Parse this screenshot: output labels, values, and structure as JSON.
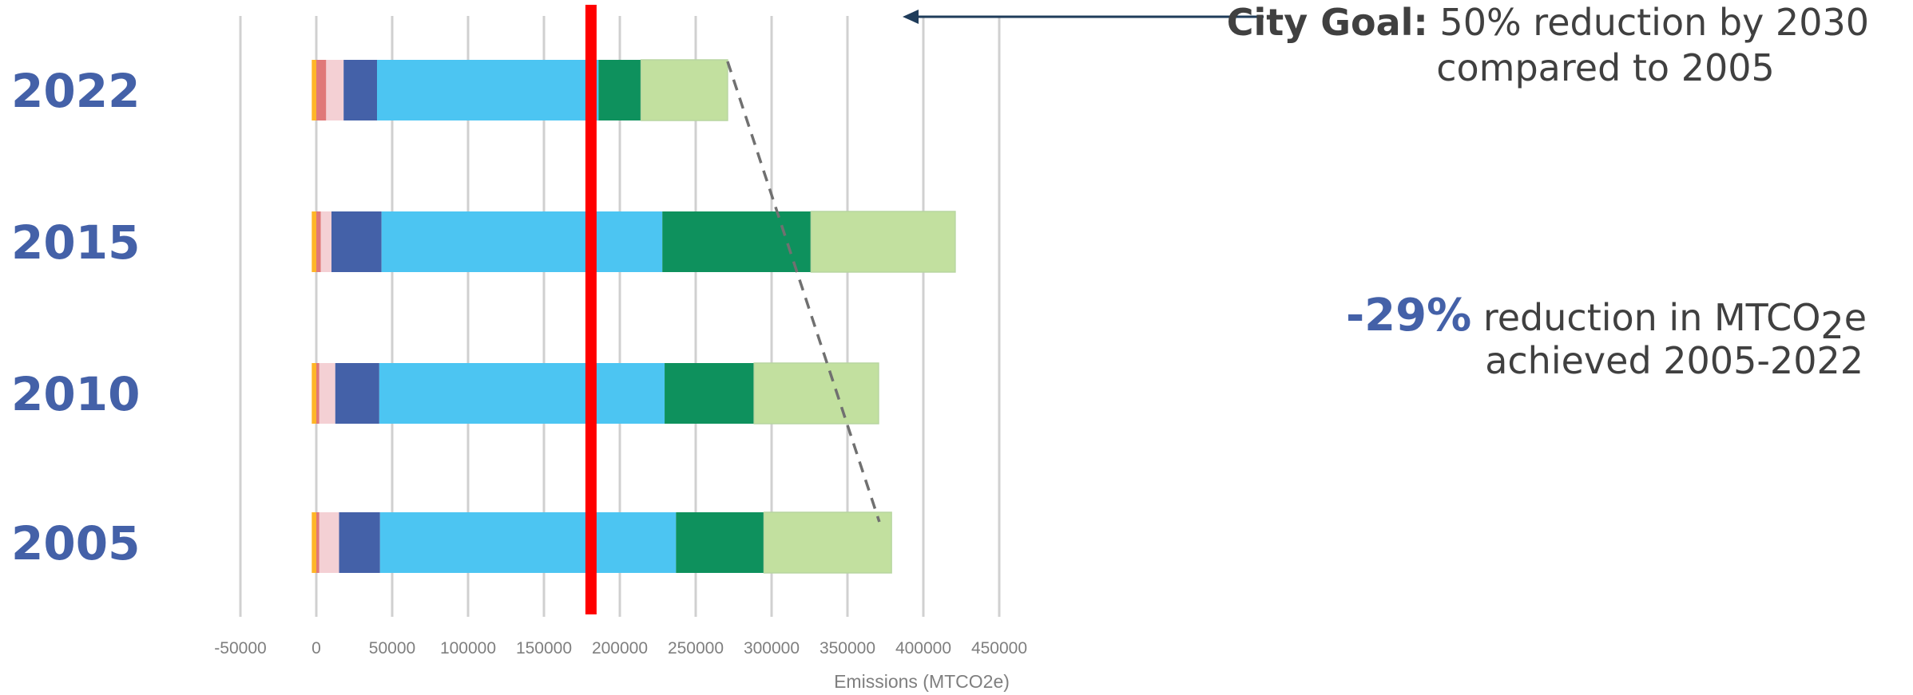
{
  "chart_data": {
    "type": "bar",
    "orientation": "horizontal",
    "stacked": true,
    "categories": [
      "2022",
      "2015",
      "2010",
      "2005"
    ],
    "series": [
      {
        "color": "#FFB628",
        "values": [
          -3000,
          -3000,
          -3000,
          -3000
        ]
      },
      {
        "color": "#E07878",
        "values": [
          6500,
          3000,
          2000,
          2000
        ]
      },
      {
        "color": "#F4D0D4",
        "values": [
          11500,
          7000,
          10500,
          13000
        ]
      },
      {
        "color": "#4461A8",
        "values": [
          22000,
          33000,
          29000,
          27000
        ]
      },
      {
        "color": "#4CC5F2",
        "values": [
          146000,
          185000,
          188000,
          195000
        ]
      },
      {
        "color": "#0E915D",
        "values": [
          28000,
          98000,
          59000,
          58000
        ]
      },
      {
        "color": "#C2E09F",
        "values": [
          57000,
          95000,
          82000,
          84000
        ]
      }
    ],
    "xlabel": "Emissions (MTCO2e)",
    "xlim": [
      -50000,
      500000
    ],
    "xticks": [
      "-50000",
      "0",
      "50000",
      "100000",
      "150000",
      "200000",
      "250000",
      "300000",
      "350000",
      "400000",
      "450000"
    ],
    "xtick_values": [
      -50000,
      0,
      50000,
      100000,
      150000,
      200000,
      250000,
      300000,
      350000,
      400000,
      450000
    ],
    "grid": true,
    "goal_line": {
      "value": 181000,
      "color": "#FF0000"
    },
    "trend_line": {
      "from_category": "2022",
      "from_value": 271000,
      "to_category": "2005",
      "to_value": 371000
    }
  },
  "category_label_color": "#4461A8",
  "annotations": {
    "goal": {
      "bold": "City Goal:",
      "rest": " 50% reduction by 2030",
      "line2": "compared to 2005"
    },
    "reduction": {
      "percent": "-29%",
      "text_pre": " reduction in MTCO",
      "subscript": "2",
      "text_post": "e",
      "line2": "achieved 2005-2022"
    }
  }
}
